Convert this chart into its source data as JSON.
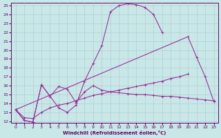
{
  "xlabel": "Windchill (Refroidissement éolien,°C)",
  "background_color": "#c8e8e8",
  "line_color": "#993399",
  "xlim": [
    -0.5,
    23.5
  ],
  "ylim": [
    11.8,
    25.3
  ],
  "xticks": [
    0,
    1,
    2,
    3,
    4,
    5,
    6,
    7,
    8,
    9,
    10,
    11,
    12,
    13,
    14,
    15,
    16,
    17,
    18,
    19,
    20,
    21,
    22,
    23
  ],
  "yticks": [
    12,
    13,
    14,
    15,
    16,
    17,
    18,
    19,
    20,
    21,
    22,
    23,
    24,
    25
  ],
  "series_A_x": [
    0,
    1,
    2,
    3,
    4,
    5,
    6,
    7,
    8,
    9,
    10,
    11,
    12,
    13,
    14,
    15,
    16,
    17,
    18,
    19,
    20,
    21,
    22,
    23
  ],
  "series_A_y": [
    13.3,
    12.1,
    11.9,
    16.1,
    14.8,
    15.9,
    15.6,
    14.1,
    15.3,
    16.0,
    15.5,
    15.3,
    15.2,
    15.1,
    15.0,
    15.0,
    14.9,
    14.8,
    14.8,
    14.7,
    14.6,
    14.5,
    14.4,
    14.3
  ],
  "series_B_x": [
    0,
    1,
    2,
    3,
    4,
    5,
    6,
    7,
    8,
    9,
    10,
    11,
    12,
    13,
    14,
    15,
    16,
    17,
    18,
    19,
    20,
    21,
    22,
    23
  ],
  "series_B_y": [
    13.3,
    12.1,
    11.9,
    16.1,
    14.8,
    13.5,
    13.0,
    13.8,
    16.5,
    18.5,
    20.5,
    24.3,
    25.0,
    25.2,
    25.1,
    24.8,
    24.0,
    22.0,
    null,
    null,
    null,
    null,
    null,
    null
  ],
  "series_C_x": [
    0,
    20,
    21,
    22,
    23
  ],
  "series_C_y": [
    13.3,
    21.5,
    19.2,
    17.0,
    14.2
  ],
  "series_D_x": [
    0,
    1,
    2,
    3,
    4,
    5,
    6,
    7,
    8,
    9,
    10,
    11,
    12,
    13,
    14,
    15,
    16,
    17,
    18,
    19,
    20,
    21,
    22,
    23
  ],
  "series_D_y": [
    13.3,
    12.4,
    12.3,
    13.0,
    13.5,
    13.8,
    14.0,
    14.3,
    14.6,
    14.9,
    15.1,
    15.3,
    15.5,
    15.7,
    15.9,
    16.1,
    16.3,
    16.5,
    16.8,
    17.0,
    17.3,
    null,
    null,
    null
  ],
  "figsize": [
    3.2,
    2.0
  ],
  "dpi": 100
}
